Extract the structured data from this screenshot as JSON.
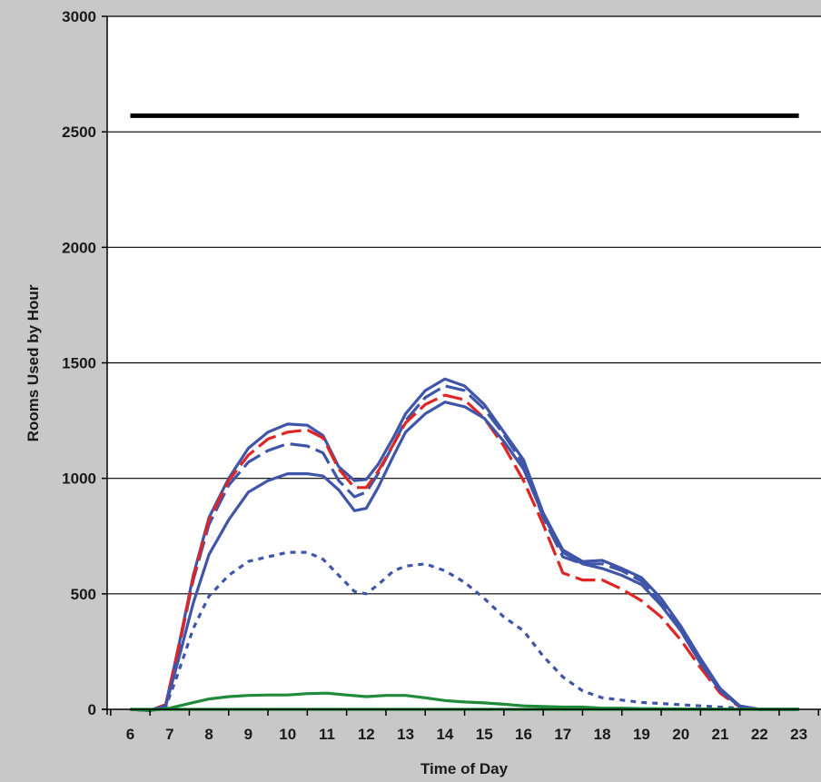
{
  "chart_data": {
    "type": "line",
    "title": "",
    "xlabel": "Time of Day",
    "ylabel": "Rooms Used by Hour",
    "xlim": [
      6,
      23
    ],
    "ylim": [
      0,
      3000
    ],
    "x_ticks": [
      "6",
      "7",
      "8",
      "9",
      "10",
      "11",
      "12",
      "13",
      "14",
      "15",
      "16",
      "17",
      "18",
      "19",
      "20",
      "21",
      "22",
      "23"
    ],
    "y_ticks": [
      "0",
      "500",
      "1000",
      "1500",
      "2000",
      "2500",
      "3000"
    ],
    "grid": "horizontal",
    "legend": "none",
    "series": [
      {
        "color": "#000000",
        "style": "solid-thick",
        "points": [
          [
            6,
            2570
          ],
          [
            23,
            2570
          ]
        ]
      },
      {
        "color": "#3f55a8",
        "style": "solid",
        "points": [
          [
            6,
            0
          ],
          [
            6.5,
            -5
          ],
          [
            6.9,
            20
          ],
          [
            7.2,
            250
          ],
          [
            7.6,
            580
          ],
          [
            8,
            830
          ],
          [
            8.5,
            1000
          ],
          [
            9,
            1130
          ],
          [
            9.5,
            1200
          ],
          [
            10,
            1235
          ],
          [
            10.5,
            1230
          ],
          [
            10.9,
            1185
          ],
          [
            11.3,
            1050
          ],
          [
            11.7,
            990
          ],
          [
            12,
            995
          ],
          [
            12.3,
            1060
          ],
          [
            12.7,
            1180
          ],
          [
            13,
            1280
          ],
          [
            13.5,
            1380
          ],
          [
            14,
            1430
          ],
          [
            14.5,
            1400
          ],
          [
            15,
            1320
          ],
          [
            15.5,
            1200
          ],
          [
            16,
            1080
          ],
          [
            16.5,
            850
          ],
          [
            17,
            690
          ],
          [
            17.5,
            640
          ],
          [
            18,
            645
          ],
          [
            18.5,
            610
          ],
          [
            19,
            570
          ],
          [
            19.5,
            480
          ],
          [
            20,
            360
          ],
          [
            20.5,
            220
          ],
          [
            21,
            90
          ],
          [
            21.5,
            15
          ],
          [
            22,
            0
          ],
          [
            23,
            0
          ]
        ]
      },
      {
        "color": "#3f55a8",
        "style": "long-dash",
        "points": [
          [
            6,
            0
          ],
          [
            6.5,
            -5
          ],
          [
            6.9,
            20
          ],
          [
            7.2,
            240
          ],
          [
            7.6,
            560
          ],
          [
            8,
            800
          ],
          [
            8.5,
            970
          ],
          [
            9,
            1070
          ],
          [
            9.5,
            1120
          ],
          [
            10,
            1150
          ],
          [
            10.5,
            1140
          ],
          [
            10.9,
            1110
          ],
          [
            11.3,
            990
          ],
          [
            11.7,
            920
          ],
          [
            12,
            940
          ],
          [
            12.3,
            1020
          ],
          [
            12.7,
            1150
          ],
          [
            13,
            1250
          ],
          [
            13.5,
            1350
          ],
          [
            14,
            1400
          ],
          [
            14.5,
            1380
          ],
          [
            15,
            1300
          ],
          [
            15.5,
            1190
          ],
          [
            16,
            1060
          ],
          [
            16.5,
            830
          ],
          [
            17,
            660
          ],
          [
            17.5,
            630
          ],
          [
            18,
            630
          ],
          [
            18.5,
            600
          ],
          [
            19,
            555
          ],
          [
            19.5,
            460
          ],
          [
            20,
            340
          ],
          [
            20.5,
            200
          ],
          [
            21,
            80
          ],
          [
            21.5,
            12
          ],
          [
            22,
            0
          ],
          [
            23,
            0
          ]
        ]
      },
      {
        "color": "#e02525",
        "style": "long-dash",
        "points": [
          [
            6,
            0
          ],
          [
            6.5,
            -5
          ],
          [
            6.9,
            20
          ],
          [
            7.2,
            250
          ],
          [
            7.6,
            570
          ],
          [
            8,
            820
          ],
          [
            8.5,
            990
          ],
          [
            9,
            1100
          ],
          [
            9.5,
            1170
          ],
          [
            10,
            1200
          ],
          [
            10.5,
            1210
          ],
          [
            10.9,
            1175
          ],
          [
            11.3,
            1040
          ],
          [
            11.7,
            960
          ],
          [
            12,
            960
          ],
          [
            12.3,
            1030
          ],
          [
            12.7,
            1150
          ],
          [
            13,
            1240
          ],
          [
            13.5,
            1320
          ],
          [
            14,
            1360
          ],
          [
            14.5,
            1340
          ],
          [
            15,
            1260
          ],
          [
            15.5,
            1140
          ],
          [
            16,
            990
          ],
          [
            16.5,
            800
          ],
          [
            17,
            590
          ],
          [
            17.5,
            560
          ],
          [
            18,
            560
          ],
          [
            18.5,
            520
          ],
          [
            19,
            470
          ],
          [
            19.5,
            400
          ],
          [
            20,
            300
          ],
          [
            20.5,
            180
          ],
          [
            21,
            70
          ],
          [
            21.5,
            10
          ],
          [
            22,
            0
          ],
          [
            23,
            0
          ]
        ]
      },
      {
        "color": "#3f55a8",
        "style": "solid",
        "points": [
          [
            6,
            0
          ],
          [
            6.5,
            -5
          ],
          [
            6.9,
            15
          ],
          [
            7.2,
            200
          ],
          [
            7.6,
            460
          ],
          [
            8,
            670
          ],
          [
            8.5,
            820
          ],
          [
            9,
            940
          ],
          [
            9.5,
            990
          ],
          [
            10,
            1020
          ],
          [
            10.5,
            1020
          ],
          [
            10.9,
            1010
          ],
          [
            11.3,
            950
          ],
          [
            11.7,
            860
          ],
          [
            12,
            870
          ],
          [
            12.3,
            960
          ],
          [
            12.7,
            1100
          ],
          [
            13,
            1200
          ],
          [
            13.5,
            1280
          ],
          [
            14,
            1330
          ],
          [
            14.5,
            1310
          ],
          [
            15,
            1260
          ],
          [
            15.5,
            1160
          ],
          [
            16,
            1040
          ],
          [
            16.5,
            840
          ],
          [
            17,
            680
          ],
          [
            17.5,
            630
          ],
          [
            18,
            610
          ],
          [
            18.5,
            580
          ],
          [
            19,
            540
          ],
          [
            19.5,
            450
          ],
          [
            20,
            340
          ],
          [
            20.5,
            200
          ],
          [
            21,
            80
          ],
          [
            21.5,
            12
          ],
          [
            22,
            0
          ],
          [
            23,
            0
          ]
        ]
      },
      {
        "color": "#3f55a8",
        "style": "short-dash",
        "points": [
          [
            6,
            0
          ],
          [
            6.5,
            -5
          ],
          [
            6.9,
            10
          ],
          [
            7.2,
            150
          ],
          [
            7.6,
            350
          ],
          [
            8,
            490
          ],
          [
            8.5,
            580
          ],
          [
            9,
            640
          ],
          [
            9.5,
            660
          ],
          [
            10,
            680
          ],
          [
            10.5,
            680
          ],
          [
            10.9,
            650
          ],
          [
            11.3,
            580
          ],
          [
            11.7,
            510
          ],
          [
            12,
            500
          ],
          [
            12.3,
            540
          ],
          [
            12.7,
            600
          ],
          [
            13,
            620
          ],
          [
            13.5,
            630
          ],
          [
            14,
            600
          ],
          [
            14.5,
            550
          ],
          [
            15,
            480
          ],
          [
            15.5,
            400
          ],
          [
            16,
            340
          ],
          [
            16.5,
            230
          ],
          [
            17,
            140
          ],
          [
            17.5,
            80
          ],
          [
            18,
            50
          ],
          [
            18.5,
            40
          ],
          [
            19,
            30
          ],
          [
            19.5,
            25
          ],
          [
            20,
            20
          ],
          [
            20.5,
            15
          ],
          [
            21,
            10
          ],
          [
            21.5,
            5
          ],
          [
            22,
            0
          ],
          [
            23,
            0
          ]
        ]
      },
      {
        "color": "#1f8a3a",
        "style": "solid",
        "points": [
          [
            6,
            0
          ],
          [
            6.5,
            -5
          ],
          [
            7,
            5
          ],
          [
            7.5,
            25
          ],
          [
            8,
            45
          ],
          [
            8.5,
            55
          ],
          [
            9,
            60
          ],
          [
            9.5,
            62
          ],
          [
            10,
            62
          ],
          [
            10.5,
            68
          ],
          [
            11,
            70
          ],
          [
            11.5,
            62
          ],
          [
            12,
            55
          ],
          [
            12.5,
            60
          ],
          [
            13,
            60
          ],
          [
            13.5,
            50
          ],
          [
            14,
            38
          ],
          [
            14.5,
            32
          ],
          [
            15,
            28
          ],
          [
            15.5,
            22
          ],
          [
            16,
            15
          ],
          [
            16.5,
            12
          ],
          [
            17,
            10
          ],
          [
            17.5,
            10
          ],
          [
            18,
            5
          ],
          [
            18.5,
            5
          ],
          [
            19,
            3
          ],
          [
            20,
            2
          ],
          [
            21,
            1
          ],
          [
            22,
            0
          ],
          [
            23,
            0
          ]
        ]
      },
      {
        "color": "#1f8a3a",
        "style": "solid",
        "points": [
          [
            6,
            0
          ],
          [
            23,
            0
          ]
        ]
      }
    ]
  }
}
